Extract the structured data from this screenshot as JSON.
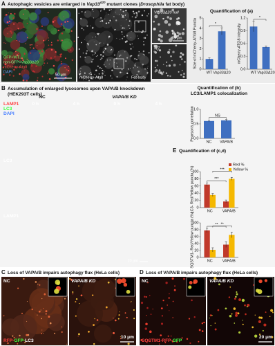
{
  "panel_a": {
    "letter": "A",
    "title": [
      "Autophagic vesicles are enlarged in ",
      "Vap33",
      "Δ20",
      " mutant clones (",
      "Drosophila",
      " fat body)"
    ],
    "image_labels": {
      "legend": [
        "GFP+WT",
        "non-GFP=Vap33Δ20",
        "mCherry-Atg8",
        "DAPI"
      ],
      "scale_1": "50 μm",
      "channel": "mCherry-Atg8",
      "tissue": "Fat body",
      "inset_top": "Vap33Δ20 null",
      "scale_2": "10 μm",
      "inset_bottom": "WT"
    },
    "quant_title": "Quantification of (a)",
    "charts": [
      {
        "type": "bar",
        "ylabel": "Size of mCherry-ATG8 Puncta",
        "categories": [
          "WT",
          "Vap33Δ20"
        ],
        "series": [
          {
            "color": "#3f6fc0",
            "values": [
              1.0,
              3.7
            ],
            "errors": [
              0.1,
              0.35
            ]
          }
        ],
        "ylim": [
          0,
          5
        ],
        "yticks": [
          0,
          1,
          2,
          3,
          4,
          5
        ],
        "annotations": [
          "*"
        ]
      },
      {
        "type": "bar",
        "ylabel": "mCherry-ATG8 intensity",
        "categories": [
          "WT",
          "Vap33Δ20"
        ],
        "series": [
          {
            "color": "#3f6fc0",
            "values": [
              1.0,
              0.52
            ],
            "errors": [
              0.12,
              0.02
            ]
          }
        ],
        "ylim": [
          0,
          1.2
        ],
        "yticks": [
          {
            "value": 0,
            "label": "0.0"
          },
          {
            "value": 0.3,
            "label": "0.3"
          },
          {
            "value": 0.6,
            "label": "0.6"
          },
          {
            "value": 0.9,
            "label": "0.9"
          },
          {
            "value": 1.2,
            "label": "1.2"
          }
        ],
        "annotations": [
          "*"
        ]
      }
    ]
  },
  "panel_b": {
    "letter": "B",
    "title": "Accumulation of enlarged lysosomes upon VAPA/B knockdown",
    "subtitle": "(HEK293T cells)",
    "conditions": [
      "NC",
      "VAPA/B KD"
    ],
    "times": [
      "0 h",
      "4 h",
      "0 h",
      "4 h"
    ],
    "merge_channels": [
      "LAMP1",
      "LC3",
      "DAPI"
    ],
    "rows": [
      "LC3",
      "LAMP1"
    ],
    "scale": "20 μm",
    "quant_title": "Quantification of (b)",
    "quant_subtitle": "LC3/LAMP1 colocalization",
    "chart": {
      "type": "bar",
      "ylabel": "Pearson's correlation",
      "categories": [
        "NC",
        "VAPA/B"
      ],
      "series": [
        {
          "color": "#3f6fc0",
          "values": [
            0.6,
            0.62
          ],
          "errors": [
            0.03,
            0.03
          ]
        }
      ],
      "ylim": [
        0,
        1
      ],
      "yticks": [
        {
          "value": 0,
          "label": "0.0"
        },
        {
          "value": 0.5,
          "label": "0.5"
        },
        {
          "value": 1,
          "label": "1.0"
        }
      ],
      "annotations": [
        "NS"
      ]
    }
  },
  "panel_e": {
    "letter": "E",
    "title": "Quantification of (c,d)",
    "charts": [
      {
        "type": "bar",
        "ylabel": "LC3- Red/Yellow puncta (%)",
        "categories": [
          "NC",
          "VAPA/B"
        ],
        "series": [
          {
            "name": "Red %",
            "color": "#c0392b",
            "values": [
              64,
              17
            ],
            "errors": [
              5,
              4
            ]
          },
          {
            "name": "Yellow %",
            "color": "#f5b800",
            "values": [
              35,
              80
            ],
            "errors": [
              4,
              4
            ]
          }
        ],
        "ylim": [
          0,
          100
        ],
        "yticks": [
          0,
          20,
          40,
          60,
          80,
          100
        ],
        "annotations": [
          "***",
          "***"
        ]
      },
      {
        "type": "bar",
        "ylabel": "SQSTM1- Red/Yellow puncta (%)",
        "categories": [
          "NC",
          "VAPA/B"
        ],
        "series": [
          {
            "color": "#c0392b",
            "values": [
              78,
              37
            ],
            "errors": [
              6,
              8
            ]
          },
          {
            "color": "#f5b800",
            "values": [
              22,
              65
            ],
            "errors": [
              6,
              8
            ]
          }
        ],
        "ylim": [
          0,
          100
        ],
        "yticks": [
          0,
          20,
          40,
          60,
          80,
          100
        ],
        "annotations": [
          "**",
          "**"
        ]
      }
    ]
  },
  "panel_c": {
    "letter": "C",
    "title": "Loss of VAPA/B impairs autophagy flux (HeLa cells)",
    "conditions": [
      "NC",
      "VAPA/B KD"
    ],
    "marker": [
      "RFP-",
      "GFP-",
      "LC3"
    ],
    "scale": "10 μm"
  },
  "panel_d": {
    "letter": "D",
    "title": "Loss of VAPA/B impairs autophagy flux (HeLa cells)",
    "conditions": [
      "NC",
      "VAPA/B KD"
    ],
    "marker": [
      "SQSTM1-RFP-",
      "GFP"
    ],
    "scale": "20 μm"
  }
}
